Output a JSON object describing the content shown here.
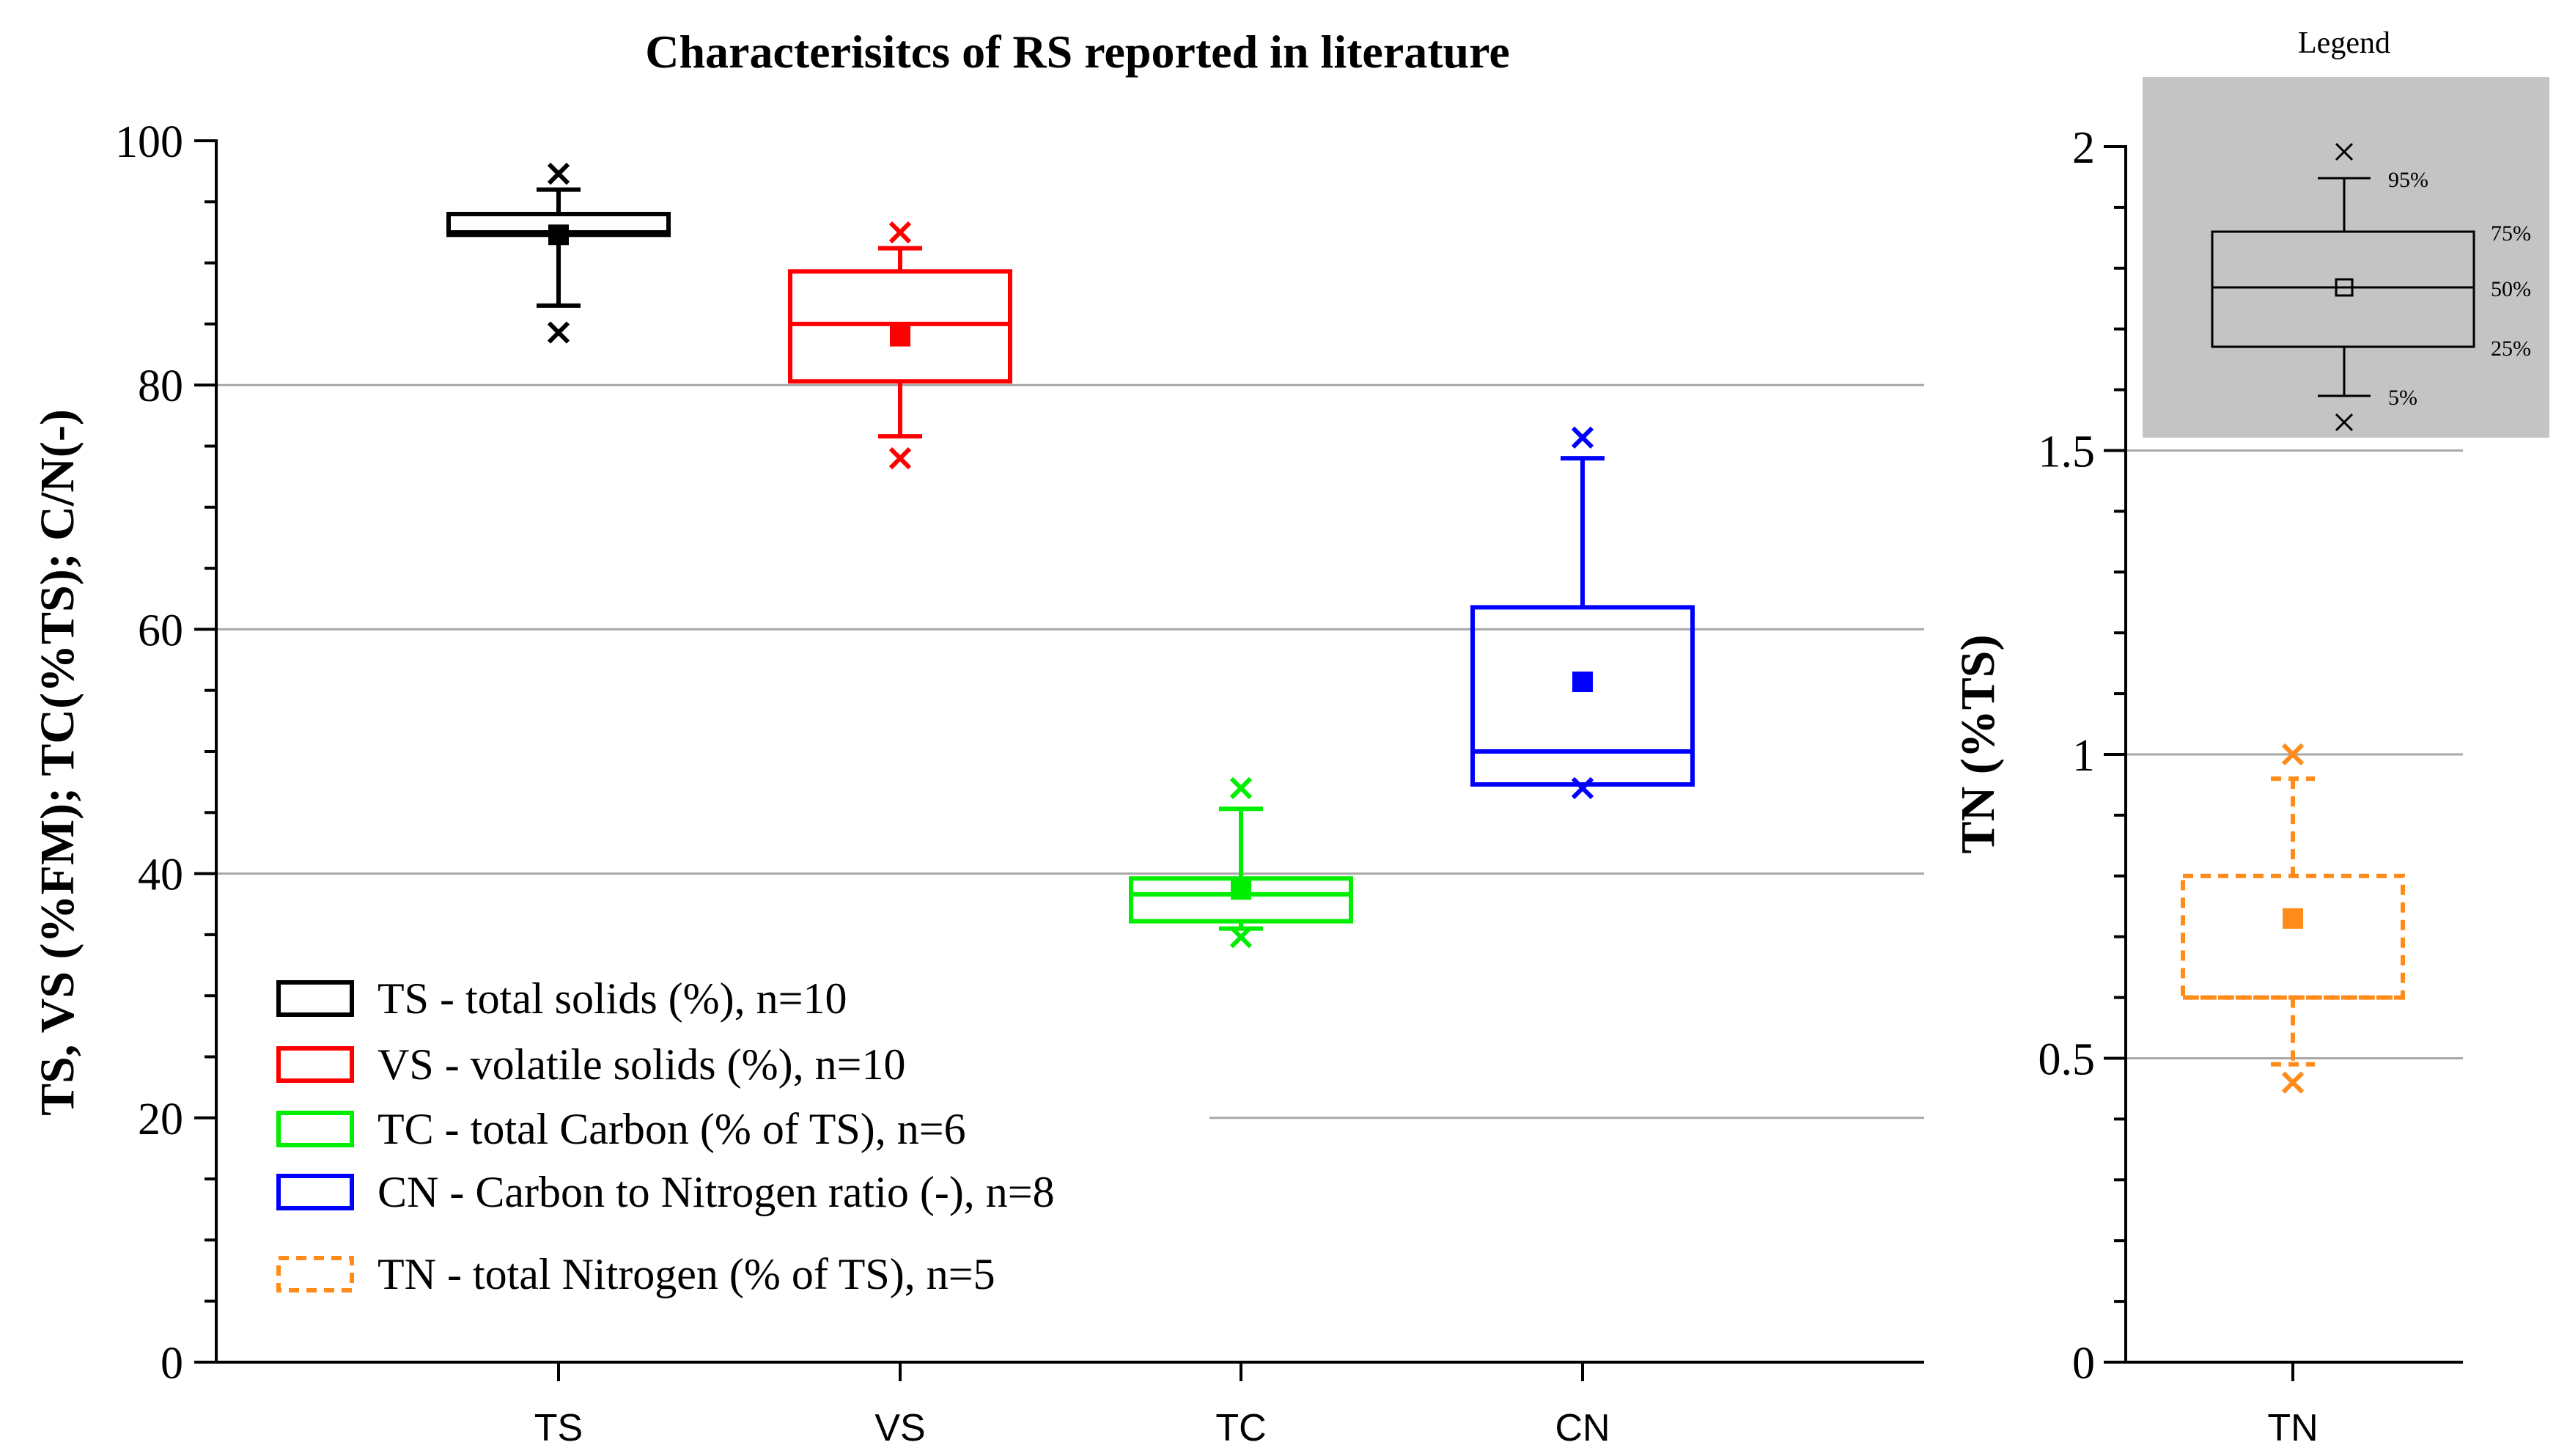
{
  "title": "Characterisitcs of RS reported in literature",
  "chart_data": [
    {
      "type": "box",
      "ylabel": "TS, VS (%FM); TC(%TS); C/N(-)",
      "ylim": [
        0,
        100
      ],
      "yticks": [
        "0",
        "20",
        "40",
        "60",
        "80",
        "100"
      ],
      "ytick_values": [
        0,
        20,
        40,
        60,
        80,
        100
      ],
      "grid": "horizontal",
      "categories": [
        "TS",
        "VS",
        "TC",
        "CN"
      ],
      "series": [
        {
          "name": "TS",
          "color": "#000000",
          "dash": false,
          "p5": 86.5,
          "p25": 92.3,
          "median": 92.5,
          "p75": 94.0,
          "p95": 96.0,
          "mean": 92.3,
          "min": 84.3,
          "max": 97.3
        },
        {
          "name": "VS",
          "color": "#ff0000",
          "dash": false,
          "p5": 75.8,
          "p25": 80.3,
          "median": 85.0,
          "p75": 89.3,
          "p95": 91.2,
          "mean": 84.0,
          "min": 74.0,
          "max": 92.5
        },
        {
          "name": "TC",
          "color": "#00ee00",
          "dash": false,
          "p5": 35.5,
          "p25": 36.1,
          "median": 38.3,
          "p75": 39.6,
          "p95": 45.3,
          "mean": 38.7,
          "min": 34.8,
          "max": 47.0
        },
        {
          "name": "CN",
          "color": "#0000ff",
          "dash": false,
          "p5": 47.3,
          "p25": 47.3,
          "median": 50.0,
          "p75": 61.8,
          "p95": 74.0,
          "mean": 55.7,
          "min": 47.0,
          "max": 75.7
        }
      ],
      "legend": {
        "placement": "bottom-left",
        "entries": [
          {
            "label": "TS - total solids (%), n=10",
            "color": "#000000",
            "dash": false
          },
          {
            "label": "VS - volatile solids (%), n=10",
            "color": "#ff0000",
            "dash": false
          },
          {
            "label": "TC - total Carbon (% of TS), n=6",
            "color": "#00ee00",
            "dash": false
          },
          {
            "label": "CN - Carbon to Nitrogen ratio (-), n=8",
            "color": "#0000ff",
            "dash": false
          },
          {
            "label": "TN - total Nitrogen (% of TS), n=5",
            "color": "#ff8c1a",
            "dash": true
          }
        ]
      }
    },
    {
      "type": "box",
      "ylabel": "TN (%TS)",
      "ylim": [
        0,
        2
      ],
      "yticks": [
        "0",
        "0.5",
        "1",
        "1.5",
        "2"
      ],
      "ytick_values": [
        0,
        0.5,
        1,
        1.5,
        2
      ],
      "grid": "horizontal",
      "categories": [
        "TN"
      ],
      "series": [
        {
          "name": "TN",
          "color": "#ff8c1a",
          "dash": true,
          "p5": 0.49,
          "p25": 0.6,
          "median": 0.6,
          "p75": 0.8,
          "p95": 0.96,
          "mean": 0.73,
          "min": 0.46,
          "max": 1.0
        }
      ],
      "inset_legend": {
        "title": "Legend",
        "labels": [
          "95%",
          "75%",
          "50%",
          "25%",
          "5%"
        ]
      }
    }
  ]
}
